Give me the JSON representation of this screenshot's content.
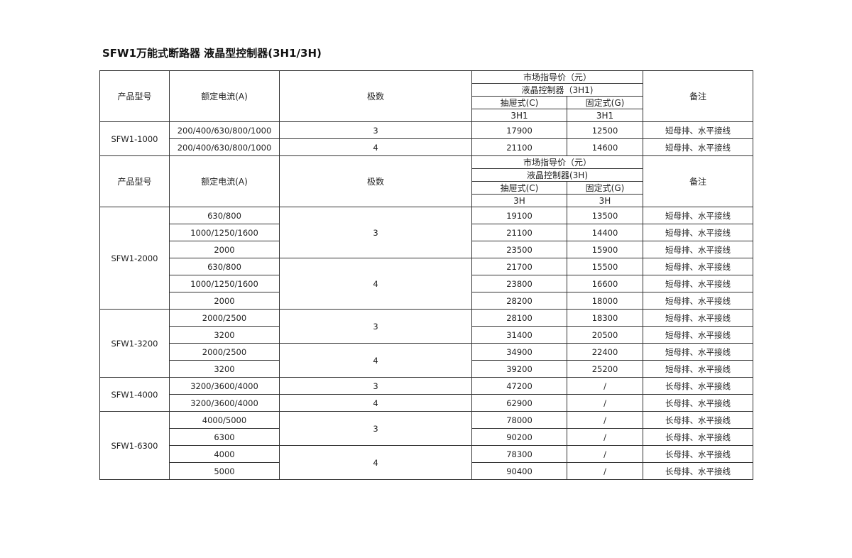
{
  "title": "SFW1万能式断路器 液晶型控制器(3H1/3H)",
  "sections": [
    {
      "header": {
        "model": "产品型号",
        "current": "额定电流(A)",
        "poles": "极数",
        "price": "市场指导价（元）",
        "controller": "液晶控制器（3H1)",
        "draw": "抽屉式(C)",
        "fixed": "固定式(G)",
        "draw_code": "3H1",
        "fixed_code": "3H1",
        "note": "备注"
      },
      "groups": [
        {
          "model": "SFW1-1000",
          "rows": [
            {
              "current": "200/400/630/800/1000",
              "poles": "3",
              "price_c": "17900",
              "price_g": "12500",
              "note": "短母排、水平接线"
            },
            {
              "current": "200/400/630/800/1000",
              "poles": "4",
              "price_c": "21100",
              "price_g": "14600",
              "note": "短母排、水平接线"
            }
          ]
        }
      ]
    },
    {
      "header": {
        "model": "产品型号",
        "current": "额定电流(A)",
        "poles": "极数",
        "price": "市场指导价（元）",
        "controller": "液晶控制器(3H)",
        "draw": "抽屉式(C)",
        "fixed": "固定式(G)",
        "draw_code": "3H",
        "fixed_code": "3H",
        "note": "备注"
      },
      "groups": [
        {
          "model": "SFW1-2000",
          "rows": [
            {
              "current": "630/800",
              "poles": "3",
              "price_c": "19100",
              "price_g": "13500",
              "note": "短母排、水平接线"
            },
            {
              "current": "1000/1250/1600",
              "poles": "3",
              "price_c": "21100",
              "price_g": "14400",
              "note": "短母排、水平接线"
            },
            {
              "current": "2000",
              "poles": "3",
              "price_c": "23500",
              "price_g": "15900",
              "note": "短母排、水平接线"
            },
            {
              "current": "630/800",
              "poles": "4",
              "price_c": "21700",
              "price_g": "15500",
              "note": "短母排、水平接线"
            },
            {
              "current": "1000/1250/1600",
              "poles": "4",
              "price_c": "23800",
              "price_g": "16600",
              "note": "短母排、水平接线"
            },
            {
              "current": "2000",
              "poles": "4",
              "price_c": "28200",
              "price_g": "18000",
              "note": "短母排、水平接线"
            }
          ]
        },
        {
          "model": "SFW1-3200",
          "rows": [
            {
              "current": "2000/2500",
              "poles": "3",
              "price_c": "28100",
              "price_g": "18300",
              "note": "短母排、水平接线"
            },
            {
              "current": "3200",
              "poles": "3",
              "price_c": "31400",
              "price_g": "20500",
              "note": "短母排、水平接线"
            },
            {
              "current": "2000/2500",
              "poles": "4",
              "price_c": "34900",
              "price_g": "22400",
              "note": "短母排、水平接线"
            },
            {
              "current": "3200",
              "poles": "4",
              "price_c": "39200",
              "price_g": "25200",
              "note": "短母排、水平接线"
            }
          ]
        },
        {
          "model": "SFW1-4000",
          "rows": [
            {
              "current": "3200/3600/4000",
              "poles": "3",
              "price_c": "47200",
              "price_g": "/",
              "note": "长母排、水平接线"
            },
            {
              "current": "3200/3600/4000",
              "poles": "4",
              "price_c": "62900",
              "price_g": "/",
              "note": "长母排、水平接线"
            }
          ]
        },
        {
          "model": "SFW1-6300",
          "rows": [
            {
              "current": "4000/5000",
              "poles": "3",
              "price_c": "78000",
              "price_g": "/",
              "note": "长母排、水平接线"
            },
            {
              "current": "6300",
              "poles": "3",
              "price_c": "90200",
              "price_g": "/",
              "note": "长母排、水平接线"
            },
            {
              "current": "4000",
              "poles": "4",
              "price_c": "78300",
              "price_g": "/",
              "note": "长母排、水平接线"
            },
            {
              "current": "5000",
              "poles": "4",
              "price_c": "90400",
              "price_g": "/",
              "note": "长母排、水平接线"
            }
          ]
        }
      ]
    }
  ]
}
